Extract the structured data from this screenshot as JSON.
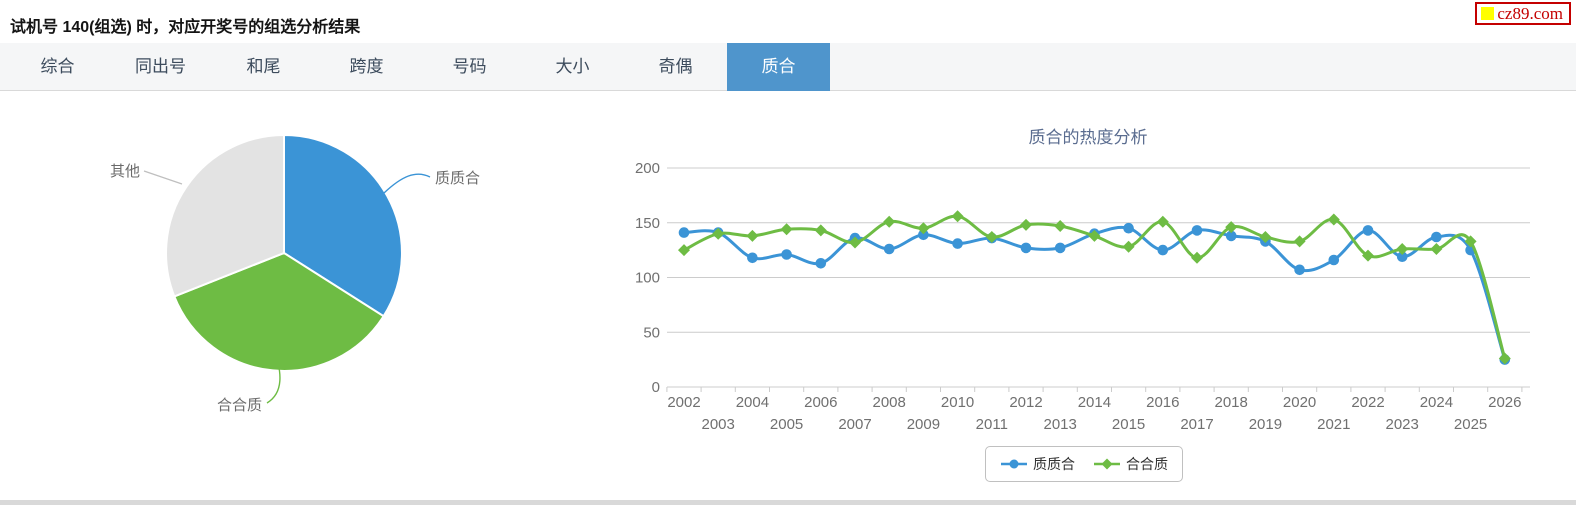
{
  "header": {
    "title": "试机号 140(组选) 时，对应开奖号的组选分析结果",
    "logo_text": "cz89.com"
  },
  "tabs": [
    {
      "label": "综合",
      "active": false
    },
    {
      "label": "同出号",
      "active": false
    },
    {
      "label": "和尾",
      "active": false
    },
    {
      "label": "跨度",
      "active": false
    },
    {
      "label": "号码",
      "active": false
    },
    {
      "label": "大小",
      "active": false
    },
    {
      "label": "奇偶",
      "active": false
    },
    {
      "label": "质合",
      "active": true
    }
  ],
  "colors": {
    "accent_blue": "#3b94d6",
    "accent_green": "#6ebc44",
    "pie_gray": "#e3e3e3",
    "active_tab": "#4f95cc",
    "gridline": "#cccccc",
    "axis_text": "#707070",
    "logo_red": "#c40000",
    "logo_yellow": "#ffff00"
  },
  "chart_data": [
    {
      "type": "pie",
      "slices": [
        {
          "label": "质质合",
          "value": 34,
          "color": "#3b94d6"
        },
        {
          "label": "合合质",
          "value": 35,
          "color": "#6ebc44"
        },
        {
          "label": "其他",
          "value": 31,
          "color": "#e3e3e3"
        }
      ]
    },
    {
      "type": "line",
      "title": "质合的热度分析",
      "x": [
        2002,
        2003,
        2004,
        2005,
        2006,
        2007,
        2008,
        2009,
        2010,
        2011,
        2012,
        2013,
        2014,
        2015,
        2016,
        2017,
        2018,
        2019,
        2020,
        2021,
        2022,
        2023,
        2024,
        2025,
        2026
      ],
      "ylim": [
        0,
        200
      ],
      "yticks": [
        0,
        50,
        100,
        150,
        200
      ],
      "grid": true,
      "legend_position": "bottom",
      "series": [
        {
          "name": "质质合",
          "color": "#3b94d6",
          "marker": "circle",
          "values": [
            141,
            141,
            118,
            121,
            113,
            136,
            126,
            139,
            131,
            136,
            127,
            127,
            140,
            145,
            125,
            143,
            138,
            133,
            107,
            116,
            143,
            119,
            137,
            125,
            25
          ]
        },
        {
          "name": "合合质",
          "color": "#6ebc44",
          "marker": "diamond",
          "values": [
            125,
            140,
            138,
            144,
            143,
            132,
            151,
            145,
            156,
            137,
            148,
            147,
            138,
            128,
            151,
            118,
            146,
            137,
            133,
            153,
            120,
            126,
            126,
            133,
            26
          ]
        }
      ]
    }
  ]
}
